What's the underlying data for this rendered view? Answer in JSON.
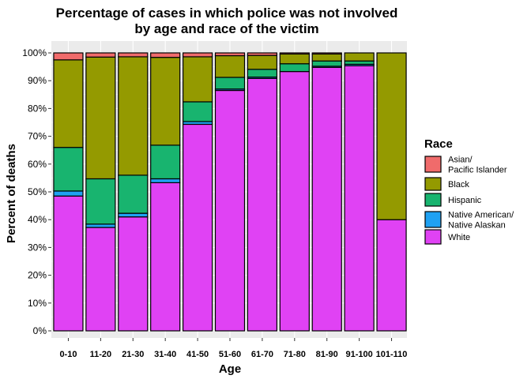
{
  "chart_data": {
    "type": "bar",
    "stacked": true,
    "title_line1": "Percentage of cases in which police was not involved",
    "title_line2": "by age and race of the victim",
    "xlabel": "Age",
    "ylabel": "Percent of deaths",
    "ylim": [
      0,
      100
    ],
    "yticks": [
      "0%",
      "10%",
      "20%",
      "30%",
      "40%",
      "50%",
      "60%",
      "70%",
      "80%",
      "90%",
      "100%"
    ],
    "grid": true,
    "legend_position": "right",
    "legend_title": "Race",
    "categories": [
      "0-10",
      "11-20",
      "21-30",
      "31-40",
      "41-50",
      "51-60",
      "61-70",
      "71-80",
      "81-90",
      "91-100",
      "101-110"
    ],
    "series": [
      {
        "name": "White",
        "label_lines": [
          "White"
        ],
        "color": "#E042F4",
        "values": [
          48.5,
          37.2,
          41.0,
          53.3,
          74.3,
          86.5,
          90.8,
          93.3,
          94.8,
          95.4,
          40.0
        ]
      },
      {
        "name": "Native American/ Native Alaskan",
        "label_lines": [
          "Native American/",
          "Native Alaskan"
        ],
        "color": "#1FA1F2",
        "values": [
          1.8,
          1.2,
          1.3,
          1.4,
          1.0,
          0.5,
          0.5,
          0.0,
          0.4,
          0.5,
          0.0
        ]
      },
      {
        "name": "Hispanic",
        "label_lines": [
          "Hispanic"
        ],
        "color": "#18B46F",
        "values": [
          15.7,
          16.3,
          13.7,
          12.1,
          7.1,
          4.2,
          2.8,
          2.8,
          1.9,
          1.2,
          0.0
        ]
      },
      {
        "name": "Black",
        "label_lines": [
          "Black"
        ],
        "color": "#949A00",
        "values": [
          31.5,
          43.8,
          42.6,
          31.6,
          16.2,
          7.8,
          5.0,
          3.5,
          2.5,
          2.9,
          60.0
        ]
      },
      {
        "name": "Asian/ Pacific Islander",
        "label_lines": [
          "Asian/",
          "Pacific Islander"
        ],
        "color": "#F06B6B",
        "values": [
          2.5,
          1.5,
          1.4,
          1.6,
          1.4,
          1.0,
          0.9,
          0.4,
          0.4,
          0.0,
          0.0
        ]
      }
    ],
    "legend_order": [
      "Asian/ Pacific Islander",
      "Black",
      "Hispanic",
      "Native American/ Native Alaskan",
      "White"
    ]
  }
}
